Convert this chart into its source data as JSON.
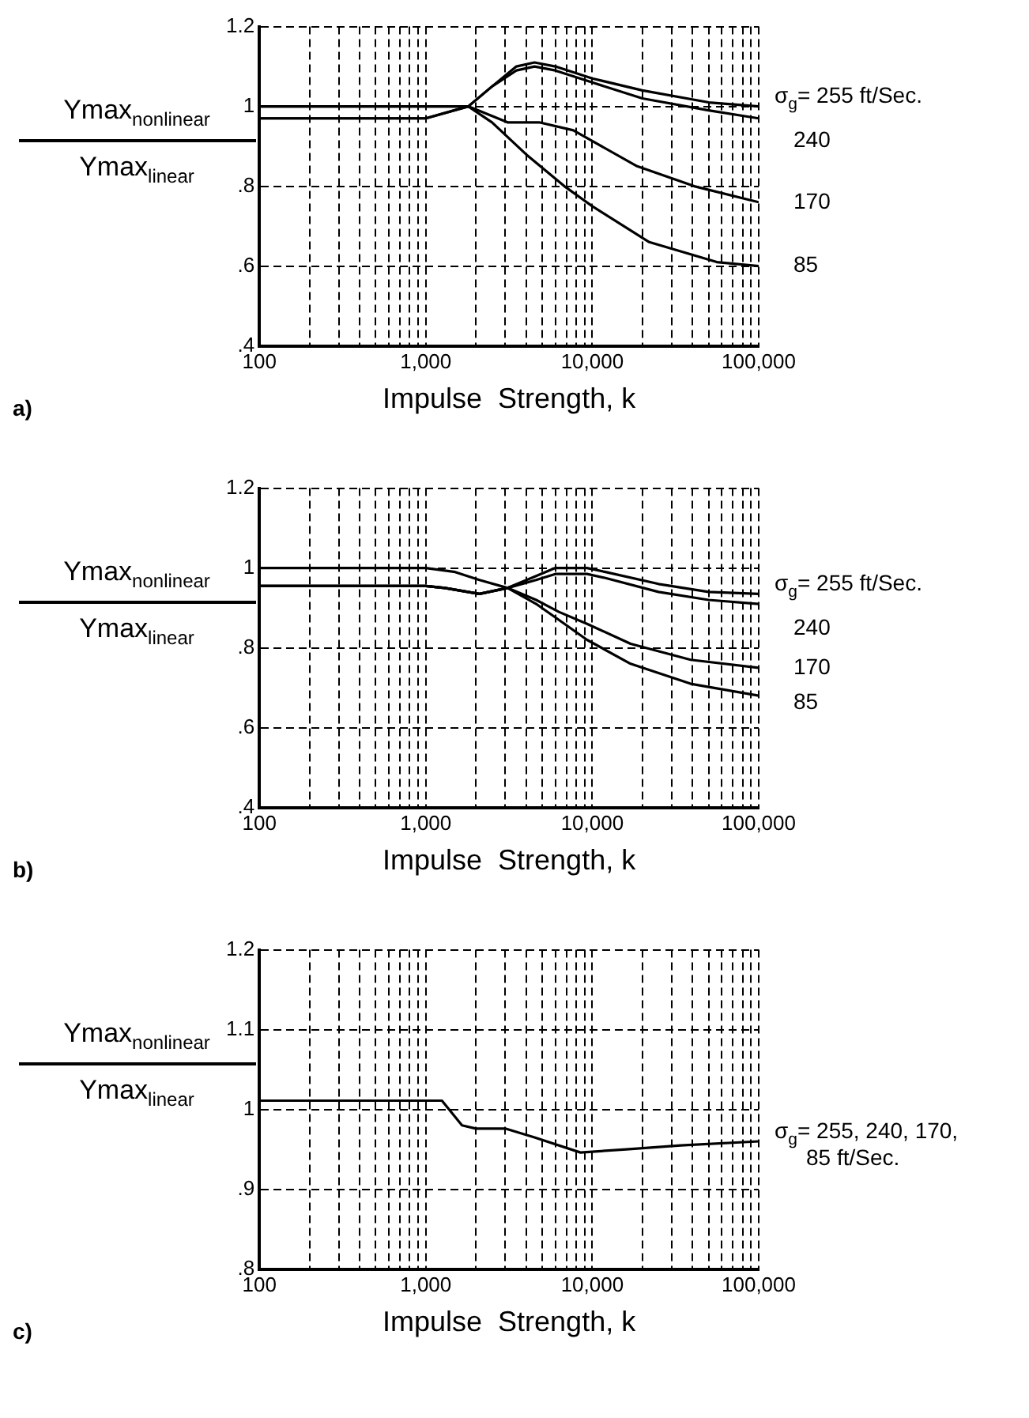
{
  "chart_data": [
    {
      "type": "line",
      "xlabel": "Impulse  Strength, k",
      "ylabel": "Ymax$_{nonlinear}$\nYmax$_{linear}$",
      "annotations": [
        "a)"
      ],
      "log": "x",
      "grid": true,
      "xlim": [
        100,
        100000
      ],
      "ylim": [
        0.4,
        1.2
      ],
      "xticks": [
        {
          "value": 100,
          "label": "100"
        },
        {
          "value": 200,
          "label": null
        },
        {
          "value": 300,
          "label": null
        },
        {
          "value": 400,
          "label": null
        },
        {
          "value": 500,
          "label": null
        },
        {
          "value": 600,
          "label": null
        },
        {
          "value": 700,
          "label": null
        },
        {
          "value": 800,
          "label": null
        },
        {
          "value": 900,
          "label": null
        },
        {
          "value": 1000,
          "label": "1,000"
        },
        {
          "value": 2000,
          "label": null
        },
        {
          "value": 3000,
          "label": null
        },
        {
          "value": 4000,
          "label": null
        },
        {
          "value": 5000,
          "label": null
        },
        {
          "value": 6000,
          "label": null
        },
        {
          "value": 7000,
          "label": null
        },
        {
          "value": 8000,
          "label": null
        },
        {
          "value": 9000,
          "label": null
        },
        {
          "value": 10000,
          "label": "10,000"
        },
        {
          "value": 20000,
          "label": null
        },
        {
          "value": 30000,
          "label": null
        },
        {
          "value": 40000,
          "label": null
        },
        {
          "value": 50000,
          "label": null
        },
        {
          "value": 60000,
          "label": null
        },
        {
          "value": 70000,
          "label": null
        },
        {
          "value": 80000,
          "label": null
        },
        {
          "value": 90000,
          "label": null
        },
        {
          "value": 100000,
          "label": "100,000"
        }
      ],
      "yticks": [
        {
          "value": 0.4,
          "label": ".4"
        },
        {
          "value": 0.6,
          "label": ".6"
        },
        {
          "value": 0.8,
          "label": ".8"
        },
        1,
        1.2
      ],
      "series": [
        {
          "name": "σ$_{g}$= 255 ft/Sec.",
          "color": "#000000",
          "x": [
            100,
            1000,
            1800,
            2500,
            3500,
            4500,
            6000,
            10000,
            20000,
            50000,
            100000
          ],
          "values": [
            1.0,
            1.0,
            1.0,
            1.05,
            1.1,
            1.11,
            1.1,
            1.07,
            1.04,
            1.01,
            1.0
          ]
        },
        {
          "name": "240",
          "color": "#000000",
          "x": [
            100,
            1000,
            1800,
            2500,
            3500,
            4500,
            6000,
            10000,
            20000,
            50000,
            100000
          ],
          "values": [
            1.0,
            1.0,
            1.0,
            1.05,
            1.09,
            1.1,
            1.09,
            1.06,
            1.02,
            0.99,
            0.97
          ]
        },
        {
          "name": "170",
          "color": "#000000",
          "x": [
            100,
            1000,
            1800,
            3100,
            4800,
            7700,
            18600,
            41000,
            100000
          ],
          "values": [
            0.97,
            0.97,
            1.0,
            0.96,
            0.96,
            0.94,
            0.85,
            0.8,
            0.76
          ]
        },
        {
          "name": "85",
          "color": "#000000",
          "x": [
            100,
            1000,
            1800,
            2500,
            4000,
            6800,
            10000,
            22000,
            56000,
            100000
          ],
          "values": [
            0.97,
            0.97,
            1.0,
            0.96,
            0.88,
            0.8,
            0.75,
            0.66,
            0.61,
            0.6
          ]
        }
      ]
    },
    {
      "type": "line",
      "xlabel": "Impulse  Strength, k",
      "ylabel": "Ymax$_{nonlinear}$\nYmax$_{linear}$",
      "annotations": [
        "b)"
      ],
      "log": "x",
      "grid": true,
      "xlim": [
        100,
        100000
      ],
      "ylim": [
        0.4,
        1.2
      ],
      "xticks": [
        {
          "value": 100,
          "label": "100"
        },
        {
          "value": 200,
          "label": null
        },
        {
          "value": 300,
          "label": null
        },
        {
          "value": 400,
          "label": null
        },
        {
          "value": 500,
          "label": null
        },
        {
          "value": 600,
          "label": null
        },
        {
          "value": 700,
          "label": null
        },
        {
          "value": 800,
          "label": null
        },
        {
          "value": 900,
          "label": null
        },
        {
          "value": 1000,
          "label": "1,000"
        },
        {
          "value": 2000,
          "label": null
        },
        {
          "value": 3000,
          "label": null
        },
        {
          "value": 4000,
          "label": null
        },
        {
          "value": 5000,
          "label": null
        },
        {
          "value": 6000,
          "label": null
        },
        {
          "value": 7000,
          "label": null
        },
        {
          "value": 8000,
          "label": null
        },
        {
          "value": 9000,
          "label": null
        },
        {
          "value": 10000,
          "label": "10,000"
        },
        {
          "value": 20000,
          "label": null
        },
        {
          "value": 30000,
          "label": null
        },
        {
          "value": 40000,
          "label": null
        },
        {
          "value": 50000,
          "label": null
        },
        {
          "value": 60000,
          "label": null
        },
        {
          "value": 70000,
          "label": null
        },
        {
          "value": 80000,
          "label": null
        },
        {
          "value": 90000,
          "label": null
        },
        {
          "value": 100000,
          "label": "100,000"
        }
      ],
      "yticks": [
        {
          "value": 0.4,
          "label": ".4"
        },
        {
          "value": 0.6,
          "label": ".6"
        },
        {
          "value": 0.8,
          "label": ".8"
        },
        1,
        1.2
      ],
      "series": [
        {
          "name": "σ$_{g}$= 255 ft/Sec.",
          "color": "#000000",
          "x": [
            100,
            1000,
            1300,
            2100,
            3100,
            4600,
            6000,
            9300,
            12000,
            25000,
            50000,
            100000
          ],
          "values": [
            0.955,
            0.955,
            0.95,
            0.935,
            0.95,
            0.98,
            1.0,
            1.0,
            0.99,
            0.96,
            0.94,
            0.935
          ]
        },
        {
          "name": "240",
          "color": "#000000",
          "x": [
            100,
            1000,
            1300,
            2100,
            3100,
            4600,
            6000,
            9300,
            12000,
            25000,
            50000,
            100000
          ],
          "values": [
            0.955,
            0.955,
            0.95,
            0.935,
            0.95,
            0.97,
            0.985,
            0.985,
            0.975,
            0.94,
            0.92,
            0.91
          ]
        },
        {
          "name": "170",
          "color": "#000000",
          "x": [
            100,
            1000,
            1300,
            2100,
            3100,
            4600,
            6300,
            9300,
            17000,
            39000,
            100000
          ],
          "values": [
            0.955,
            0.955,
            0.95,
            0.935,
            0.95,
            0.92,
            0.89,
            0.86,
            0.81,
            0.77,
            0.75
          ]
        },
        {
          "name": "85",
          "color": "#000000",
          "x": [
            100,
            1000,
            1500,
            2100,
            3100,
            4600,
            6300,
            9300,
            17000,
            39000,
            100000
          ],
          "values": [
            1.0,
            1.0,
            0.99,
            0.97,
            0.95,
            0.91,
            0.87,
            0.82,
            0.76,
            0.71,
            0.68
          ]
        }
      ]
    },
    {
      "type": "line",
      "xlabel": "Impulse  Strength, k",
      "ylabel": "Ymax$_{nonlinear}$\nYmax$_{linear}$",
      "annotations": [
        "c)"
      ],
      "log": "x",
      "grid": true,
      "xlim": [
        100,
        100000
      ],
      "ylim": [
        0.8,
        1.2
      ],
      "xticks": [
        {
          "value": 100,
          "label": "100"
        },
        {
          "value": 200,
          "label": null
        },
        {
          "value": 300,
          "label": null
        },
        {
          "value": 400,
          "label": null
        },
        {
          "value": 500,
          "label": null
        },
        {
          "value": 600,
          "label": null
        },
        {
          "value": 700,
          "label": null
        },
        {
          "value": 800,
          "label": null
        },
        {
          "value": 900,
          "label": null
        },
        {
          "value": 1000,
          "label": "1,000"
        },
        {
          "value": 2000,
          "label": null
        },
        {
          "value": 3000,
          "label": null
        },
        {
          "value": 4000,
          "label": null
        },
        {
          "value": 5000,
          "label": null
        },
        {
          "value": 6000,
          "label": null
        },
        {
          "value": 7000,
          "label": null
        },
        {
          "value": 8000,
          "label": null
        },
        {
          "value": 9000,
          "label": null
        },
        {
          "value": 10000,
          "label": "10,000"
        },
        {
          "value": 20000,
          "label": null
        },
        {
          "value": 30000,
          "label": null
        },
        {
          "value": 40000,
          "label": null
        },
        {
          "value": 50000,
          "label": null
        },
        {
          "value": 60000,
          "label": null
        },
        {
          "value": 70000,
          "label": null
        },
        {
          "value": 80000,
          "label": null
        },
        {
          "value": 90000,
          "label": null
        },
        {
          "value": 100000,
          "label": "100,000"
        }
      ],
      "yticks": [
        {
          "value": 0.8,
          "label": ".8"
        },
        {
          "value": 0.9,
          "label": ".9"
        },
        1,
        1.1,
        1.2
      ],
      "series": [
        {
          "name": "σ$_{g}$= 255, 240, 170, 85 ft/Sec.",
          "color": "#000000",
          "x": [
            100,
            1250,
            1650,
            2000,
            3000,
            4500,
            8500,
            16000,
            34000,
            100000
          ],
          "values": [
            1.011,
            1.011,
            0.98,
            0.976,
            0.976,
            0.965,
            0.946,
            0.95,
            0.955,
            0.96
          ]
        }
      ]
    }
  ]
}
